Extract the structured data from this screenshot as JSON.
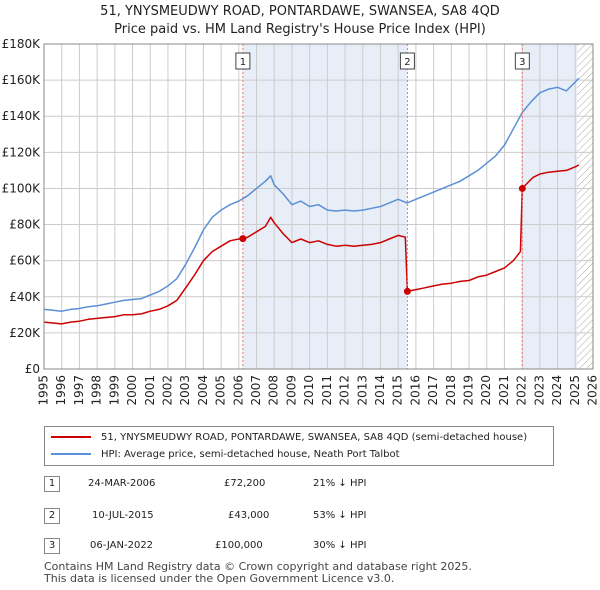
{
  "title_line1": "51, YNYSMEUDWY ROAD, PONTARDAWE, SWANSEA, SA8 4QD",
  "title_line2": "Price paid vs. HM Land Registry's House Price Index (HPI)",
  "colors": {
    "property": "#cc0000",
    "hpi": "#5b8fd6",
    "shade": "#e8eef8",
    "grid": "#cccccc",
    "marker": "#ee7777"
  },
  "chart_data": {
    "type": "line",
    "xlim": [
      1995,
      2026
    ],
    "ylim": [
      0,
      180000
    ],
    "yticks": [
      0,
      20000,
      40000,
      60000,
      80000,
      100000,
      120000,
      140000,
      160000,
      180000
    ],
    "ytick_labels": [
      "£0",
      "£20K",
      "£40K",
      "£60K",
      "£80K",
      "£100K",
      "£120K",
      "£140K",
      "£160K",
      "£180K"
    ],
    "xticks": [
      "1995",
      "1996",
      "1997",
      "1998",
      "1999",
      "2000",
      "2001",
      "2002",
      "2003",
      "2004",
      "2005",
      "2006",
      "2007",
      "2008",
      "2009",
      "2010",
      "2011",
      "2012",
      "2013",
      "2014",
      "2015",
      "2016",
      "2017",
      "2018",
      "2019",
      "2020",
      "2021",
      "2022",
      "2023",
      "2024",
      "2025",
      "2026"
    ],
    "shaded_ranges": [
      [
        2006.23,
        2015.52
      ],
      [
        2022.01,
        2025.1
      ]
    ],
    "hatched_from": 2025.1,
    "series": [
      {
        "name": "51, YNYSMEUDWY ROAD, PONTARDAWE, SWANSEA, SA8 4QD (semi-detached house)",
        "x": [
          1995.0,
          1995.5,
          1996.0,
          1996.5,
          1997.0,
          1997.5,
          1998.0,
          1998.5,
          1999.0,
          1999.5,
          2000.0,
          2000.5,
          2001.0,
          2001.5,
          2002.0,
          2002.5,
          2003.0,
          2003.5,
          2004.0,
          2004.5,
          2005.0,
          2005.5,
          2006.0,
          2006.23,
          2006.5,
          2007.0,
          2007.5,
          2007.8,
          2008.0,
          2008.5,
          2008.8,
          2009.0,
          2009.5,
          2010.0,
          2010.5,
          2011.0,
          2011.5,
          2012.0,
          2012.5,
          2013.0,
          2013.5,
          2014.0,
          2014.5,
          2015.0,
          2015.4,
          2015.52,
          2016.0,
          2016.5,
          2017.0,
          2017.5,
          2018.0,
          2018.5,
          2019.0,
          2019.5,
          2020.0,
          2020.5,
          2021.0,
          2021.5,
          2021.9,
          2022.01,
          2022.3,
          2022.6,
          2023.0,
          2023.5,
          2024.0,
          2024.5,
          2025.0,
          2025.2
        ],
        "values": [
          26000,
          25500,
          25000,
          26000,
          26500,
          27500,
          28000,
          28500,
          29000,
          30000,
          30000,
          30500,
          32000,
          33000,
          35000,
          38000,
          45000,
          52000,
          60000,
          65000,
          68000,
          71000,
          72000,
          72200,
          73000,
          76000,
          79000,
          84000,
          81000,
          75000,
          72000,
          70000,
          72000,
          70000,
          71000,
          69000,
          68000,
          68500,
          68000,
          68500,
          69000,
          70000,
          72000,
          74000,
          73000,
          43000,
          44000,
          45000,
          46000,
          47000,
          47500,
          48500,
          49000,
          51000,
          52000,
          54000,
          56000,
          60000,
          65000,
          100000,
          103000,
          106000,
          108000,
          109000,
          109500,
          110000,
          112000,
          113000
        ]
      },
      {
        "name": "HPI: Average price, semi-detached house, Neath Port Talbot",
        "x": [
          1995.0,
          1995.5,
          1996.0,
          1996.5,
          1997.0,
          1997.5,
          1998.0,
          1998.5,
          1999.0,
          1999.5,
          2000.0,
          2000.5,
          2001.0,
          2001.5,
          2002.0,
          2002.5,
          2003.0,
          2003.5,
          2004.0,
          2004.5,
          2005.0,
          2005.5,
          2006.0,
          2006.5,
          2007.0,
          2007.5,
          2007.8,
          2008.0,
          2008.5,
          2009.0,
          2009.5,
          2010.0,
          2010.5,
          2011.0,
          2011.5,
          2012.0,
          2012.5,
          2013.0,
          2013.5,
          2014.0,
          2014.5,
          2015.0,
          2015.5,
          2016.0,
          2016.5,
          2017.0,
          2017.5,
          2018.0,
          2018.5,
          2019.0,
          2019.5,
          2020.0,
          2020.5,
          2021.0,
          2021.5,
          2022.0,
          2022.5,
          2023.0,
          2023.5,
          2024.0,
          2024.5,
          2025.0,
          2025.2
        ],
        "values": [
          33000,
          32500,
          32000,
          33000,
          33500,
          34500,
          35000,
          36000,
          37000,
          38000,
          38500,
          39000,
          41000,
          43000,
          46000,
          50000,
          58000,
          67000,
          77000,
          84000,
          88000,
          91000,
          93000,
          96000,
          100000,
          104000,
          107000,
          102000,
          97000,
          91000,
          93000,
          90000,
          91000,
          88000,
          87500,
          88000,
          87500,
          88000,
          89000,
          90000,
          92000,
          94000,
          92000,
          94000,
          96000,
          98000,
          100000,
          102000,
          104000,
          107000,
          110000,
          114000,
          118000,
          124000,
          133000,
          142000,
          148000,
          153000,
          155000,
          156000,
          154000,
          159000,
          161000
        ]
      }
    ],
    "markers": [
      {
        "id": "1",
        "x": 2006.23,
        "y": 72200
      },
      {
        "id": "2",
        "x": 2015.52,
        "y": 43000
      },
      {
        "id": "3",
        "x": 2022.01,
        "y": 100000
      }
    ]
  },
  "legend": {
    "property": "51, YNYSMEUDWY ROAD, PONTARDAWE, SWANSEA, SA8 4QD (semi-detached house)",
    "hpi": "HPI: Average price, semi-detached house, Neath Port Talbot"
  },
  "transactions": [
    {
      "id": "1",
      "date": "24-MAR-2006",
      "price": "£72,200",
      "hpi": "21% ↓ HPI"
    },
    {
      "id": "2",
      "date": "10-JUL-2015",
      "price": "£43,000",
      "hpi": "53% ↓ HPI"
    },
    {
      "id": "3",
      "date": "06-JAN-2022",
      "price": "£100,000",
      "hpi": "30% ↓ HPI"
    }
  ],
  "footer_line1": "Contains HM Land Registry data © Crown copyright and database right 2025.",
  "footer_line2": "This data is licensed under the Open Government Licence v3.0."
}
